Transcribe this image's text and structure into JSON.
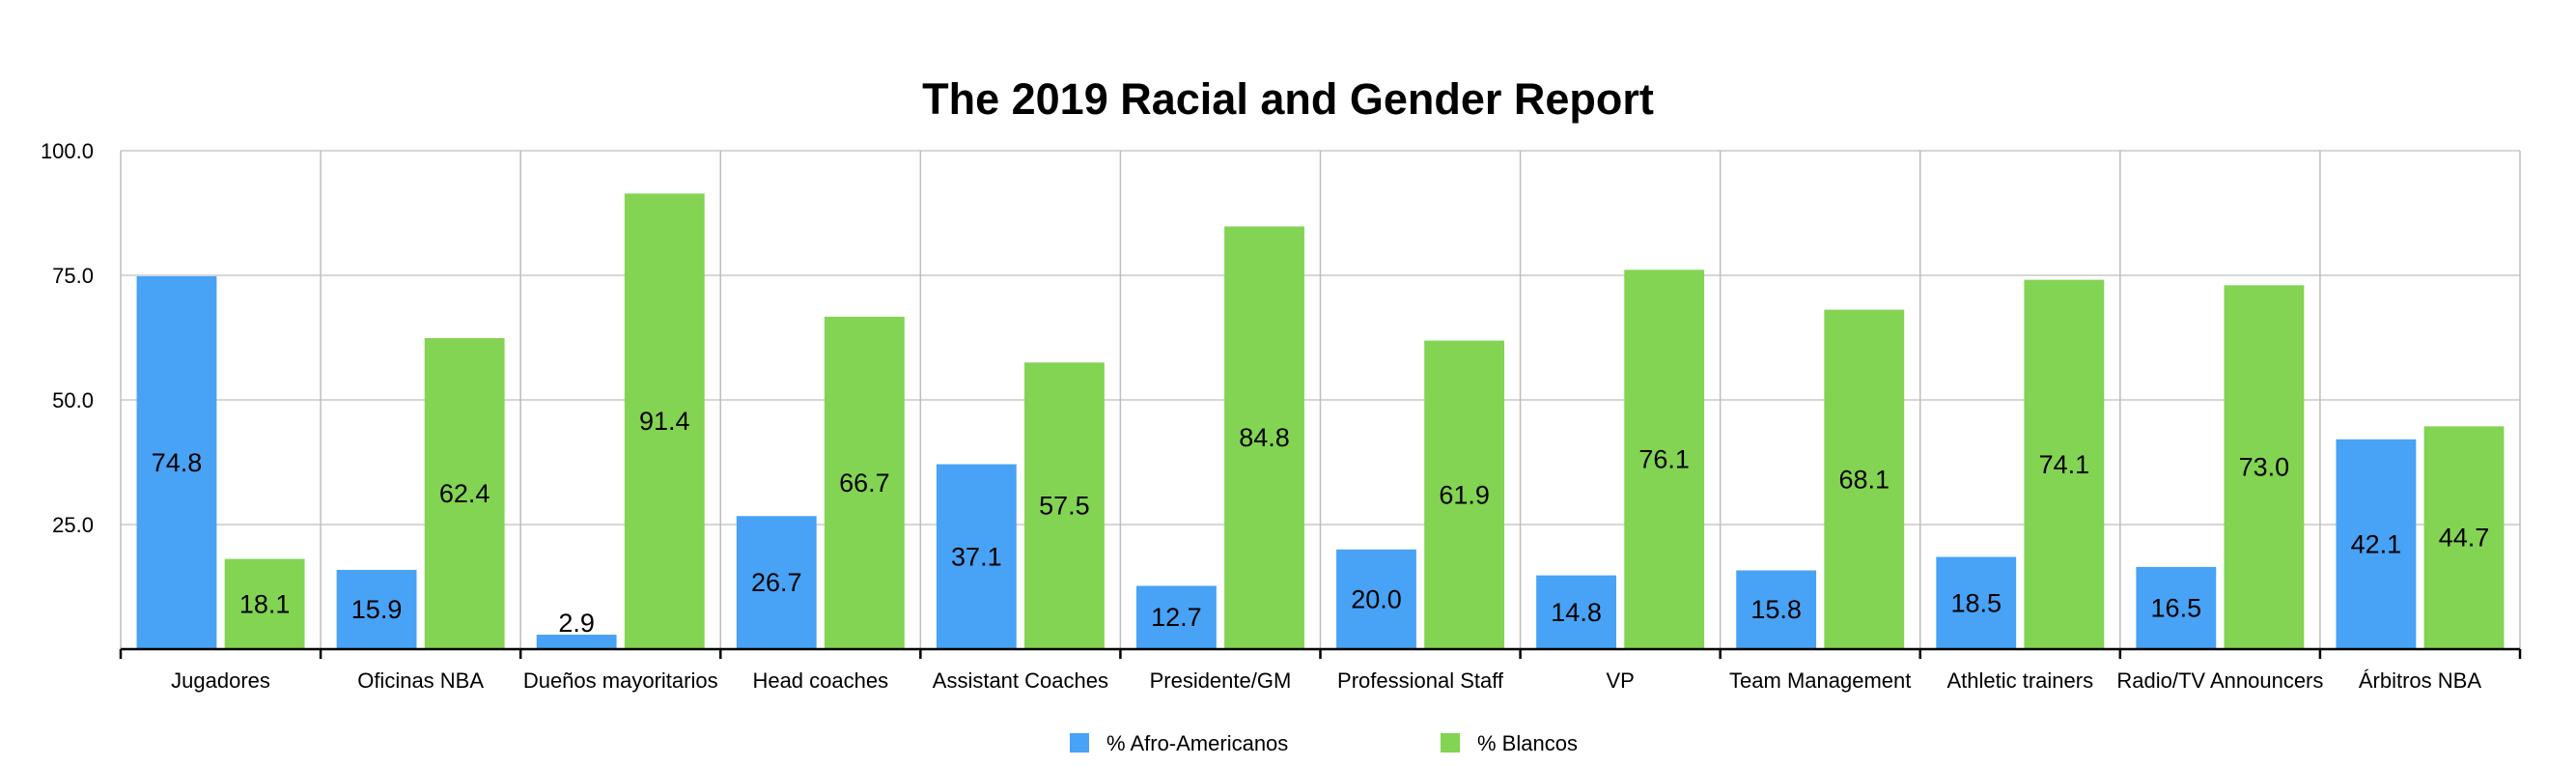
{
  "chart_data": {
    "type": "bar",
    "title": "The 2019 Racial and Gender Report",
    "categories": [
      "Jugadores",
      "Oficinas NBA",
      "Dueños mayoritarios",
      "Head coaches",
      "Assistant Coaches",
      "Presidente/GM",
      "Professional Staff",
      "VP",
      "Team Management",
      "Athletic trainers",
      "Radio/TV Announcers",
      "Árbitros NBA"
    ],
    "series": [
      {
        "name": "% Afro-Americanos",
        "color": "#48a2f5",
        "values": [
          74.8,
          15.9,
          2.9,
          26.7,
          37.1,
          12.7,
          20.0,
          14.8,
          15.8,
          18.5,
          16.5,
          42.1
        ]
      },
      {
        "name": "% Blancos",
        "color": "#82d452",
        "values": [
          18.1,
          62.4,
          91.4,
          66.7,
          57.5,
          84.8,
          61.9,
          76.1,
          68.1,
          74.1,
          73.0,
          44.7
        ]
      }
    ],
    "ylim": [
      0,
      100
    ],
    "yticks": [
      "100.0",
      "75.0",
      "50.0",
      "25.0"
    ],
    "ytick_values": [
      100,
      75,
      50,
      25
    ],
    "grid": true,
    "legend": "bottom"
  }
}
